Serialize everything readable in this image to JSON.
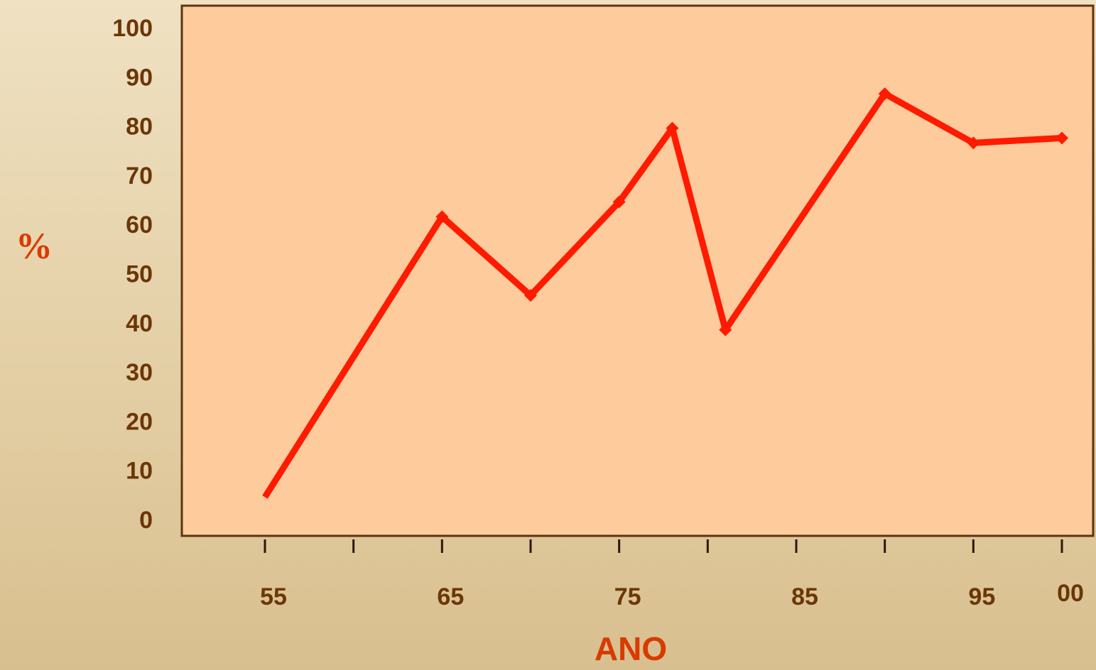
{
  "chart_data": {
    "type": "line",
    "y_label": "%",
    "x_label": "ANO",
    "x": [
      55,
      65,
      70,
      75,
      78,
      81,
      90,
      95,
      100
    ],
    "series": [
      {
        "color": "#ff1a00",
        "values": [
          5,
          62,
          46,
          65,
          80,
          39,
          87,
          77,
          78
        ]
      }
    ],
    "xlim": [
      55,
      100
    ],
    "xticks": [
      55,
      {
        "value": 60,
        "label": null
      },
      65,
      {
        "value": 70,
        "label": null
      },
      75,
      {
        "value": 80,
        "label": null
      },
      85,
      {
        "value": 90,
        "label": null
      },
      95,
      {
        "value": 100,
        "label": "00"
      }
    ],
    "ylim": [
      0,
      100
    ],
    "yticks": [
      0,
      10,
      20,
      30,
      40,
      50,
      60,
      70,
      80,
      90,
      100
    ],
    "grid": false
  }
}
